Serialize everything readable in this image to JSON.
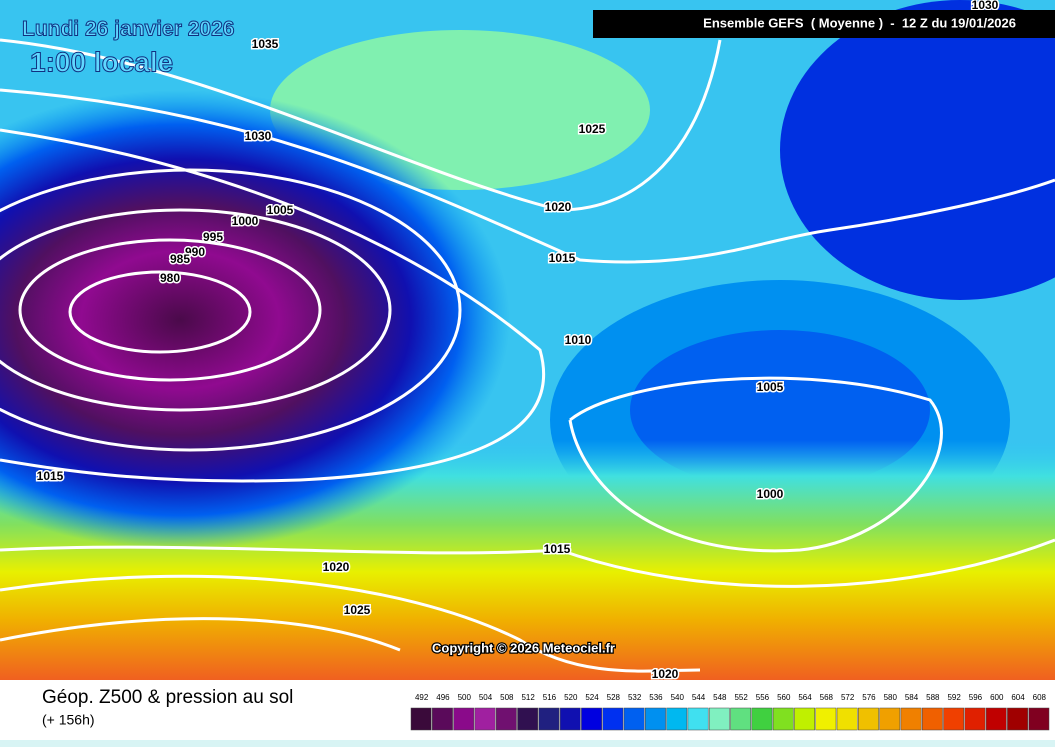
{
  "header": {
    "date": "Lundi 26 janvier 2026",
    "time": "1:00 locale",
    "model": "Ensemble GEFS  ( Moyenne )  -  12 Z du 19/01/2026",
    "copyright": "Copyright © 2026 Meteociel.fr"
  },
  "isobars": [
    1035,
    1030,
    1025,
    1020,
    1015,
    1010,
    1005,
    1000,
    1015,
    1020,
    1025,
    1020,
    1015,
    1005,
    1000,
    995,
    990,
    985,
    980,
    1030
  ],
  "legend": {
    "title": "Géop. Z500 & pression au sol",
    "lead": "(+ 156h)",
    "scale": [
      492,
      496,
      500,
      504,
      508,
      512,
      516,
      520,
      524,
      528,
      532,
      536,
      540,
      544,
      548,
      552,
      556,
      560,
      564,
      568,
      572,
      576,
      580,
      584,
      588,
      592,
      596,
      600,
      604,
      608
    ],
    "colors": [
      "#3a0a3a",
      "#5a0a5a",
      "#8a0a8a",
      "#a020a0",
      "#701070",
      "#301050",
      "#202080",
      "#1010b0",
      "#0000e0",
      "#0030f0",
      "#0060f0",
      "#0090f0",
      "#00b8f0",
      "#40e0f0",
      "#80f0c0",
      "#60e080",
      "#40d040",
      "#80e020",
      "#c0f000",
      "#f0f000",
      "#f0e000",
      "#f0c000",
      "#f0a000",
      "#f08000",
      "#f06000",
      "#f04000",
      "#e02000",
      "#c00000",
      "#a00000",
      "#800020"
    ]
  }
}
